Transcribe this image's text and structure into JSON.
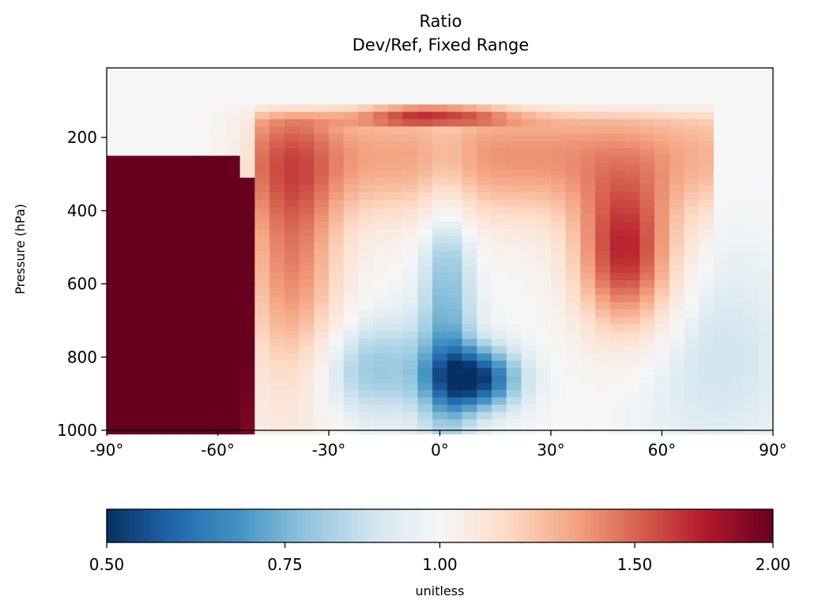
{
  "chart_data": {
    "type": "heatmap",
    "title": "Ratio",
    "subtitle": "Dev/Ref, Fixed Range",
    "xlabel": "",
    "ylabel": "Pressure (hPa)",
    "x_range": [
      -90,
      90
    ],
    "y_range": [
      1000,
      10
    ],
    "y_axis": "pressure, inverted",
    "x_ticks": [
      -90,
      -60,
      -30,
      0,
      30,
      60,
      90
    ],
    "x_tick_labels": [
      "-90°",
      "-60°",
      "-30°",
      "0°",
      "30°",
      "60°",
      "90°"
    ],
    "y_ticks": [
      200,
      400,
      600,
      800,
      1000
    ],
    "y_tick_labels": [
      "200",
      "400",
      "600",
      "800",
      "1000"
    ],
    "grid": false,
    "colormap": "RdBu_r",
    "colorbar": {
      "orientation": "horizontal",
      "placement": "bottom",
      "label": "unitless",
      "range": [
        0.5,
        2.0
      ],
      "ticks": [
        0.5,
        0.75,
        1.0,
        1.5,
        2.0
      ],
      "tick_labels": [
        "0.50",
        "0.75",
        "1.00",
        "1.50",
        "2.00"
      ],
      "colors": [
        "#053061",
        "#2166ac",
        "#4393c3",
        "#92c5de",
        "#d1e5f0",
        "#f7f7f7",
        "#fddbc7",
        "#f4a582",
        "#d6604d",
        "#b2182b",
        "#67001f"
      ]
    },
    "grid_resolution_deg": {
      "lat": 4,
      "pressure_hpa": 20
    },
    "dominant_features": [
      {
        "feature": "southern high-latitude ratio",
        "lat_range": [
          -90,
          -52
        ],
        "pressure_range": [
          250,
          1000
        ],
        "value": 2.0
      },
      {
        "feature": "upper tropical peak",
        "lat_range": [
          -30,
          22
        ],
        "pressure_range": [
          60,
          140
        ],
        "value": 2.0
      },
      {
        "feature": "northern mid-latitude maximum",
        "lat_range": [
          40,
          60
        ],
        "pressure_range": [
          400,
          650
        ],
        "value": 1.75
      },
      {
        "feature": "tropical lower minimum",
        "lat_range": [
          -10,
          25
        ],
        "pressure_range": [
          780,
          960
        ],
        "value": 0.55
      },
      {
        "feature": "equatorial column minimum",
        "lat_range": [
          -5,
          10
        ],
        "pressure_range": [
          350,
          1000
        ],
        "value": 0.8
      },
      {
        "feature": "upper stratosphere",
        "lat_range": [
          -90,
          90
        ],
        "pressure_range": [
          10,
          100
        ],
        "value": 1.0
      }
    ]
  }
}
